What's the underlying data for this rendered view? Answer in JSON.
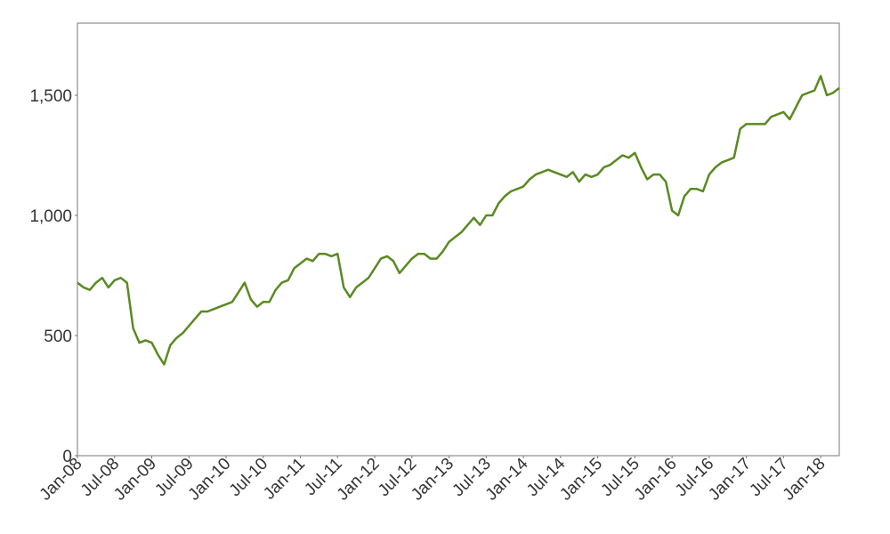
{
  "chart_data": {
    "type": "line",
    "x": [
      "Jan-08",
      "Feb-08",
      "Mar-08",
      "Apr-08",
      "May-08",
      "Jun-08",
      "Jul-08",
      "Aug-08",
      "Sep-08",
      "Oct-08",
      "Nov-08",
      "Dec-08",
      "Jan-09",
      "Feb-09",
      "Mar-09",
      "Apr-09",
      "May-09",
      "Jun-09",
      "Jul-09",
      "Aug-09",
      "Sep-09",
      "Oct-09",
      "Nov-09",
      "Dec-09",
      "Jan-10",
      "Feb-10",
      "Mar-10",
      "Apr-10",
      "May-10",
      "Jun-10",
      "Jul-10",
      "Aug-10",
      "Sep-10",
      "Oct-10",
      "Nov-10",
      "Dec-10",
      "Jan-11",
      "Feb-11",
      "Mar-11",
      "Apr-11",
      "May-11",
      "Jun-11",
      "Jul-11",
      "Aug-11",
      "Sep-11",
      "Oct-11",
      "Nov-11",
      "Dec-11",
      "Jan-12",
      "Feb-12",
      "Mar-12",
      "Apr-12",
      "May-12",
      "Jun-12",
      "Jul-12",
      "Aug-12",
      "Sep-12",
      "Oct-12",
      "Nov-12",
      "Dec-12",
      "Jan-13",
      "Feb-13",
      "Mar-13",
      "Apr-13",
      "May-13",
      "Jun-13",
      "Jul-13",
      "Aug-13",
      "Sep-13",
      "Oct-13",
      "Nov-13",
      "Dec-13",
      "Jan-14",
      "Feb-14",
      "Mar-14",
      "Apr-14",
      "May-14",
      "Jun-14",
      "Jul-14",
      "Aug-14",
      "Sep-14",
      "Oct-14",
      "Nov-14",
      "Dec-14",
      "Jan-15",
      "Feb-15",
      "Mar-15",
      "Apr-15",
      "May-15",
      "Jun-15",
      "Jul-15",
      "Aug-15",
      "Sep-15",
      "Oct-15",
      "Nov-15",
      "Dec-15",
      "Jan-16",
      "Feb-16",
      "Mar-16",
      "Apr-16",
      "May-16",
      "Jun-16",
      "Jul-16",
      "Aug-16",
      "Sep-16",
      "Oct-16",
      "Nov-16",
      "Dec-16",
      "Jan-17",
      "Feb-17",
      "Mar-17",
      "Apr-17",
      "May-17",
      "Jun-17",
      "Jul-17",
      "Aug-17",
      "Sep-17",
      "Oct-17",
      "Nov-17",
      "Dec-17",
      "Jan-18",
      "Feb-18",
      "Mar-18",
      "Apr-18"
    ],
    "series": [
      {
        "color": "#5a8a22",
        "values": [
          720,
          700,
          690,
          720,
          740,
          700,
          730,
          740,
          720,
          530,
          470,
          480,
          470,
          420,
          380,
          460,
          490,
          510,
          540,
          570,
          600,
          600,
          610,
          620,
          630,
          640,
          680,
          720,
          650,
          620,
          640,
          640,
          690,
          720,
          730,
          780,
          800,
          820,
          810,
          840,
          840,
          830,
          840,
          700,
          660,
          700,
          720,
          740,
          780,
          820,
          830,
          810,
          760,
          790,
          820,
          840,
          840,
          820,
          820,
          850,
          890,
          910,
          930,
          960,
          990,
          960,
          1000,
          1000,
          1050,
          1080,
          1100,
          1110,
          1120,
          1150,
          1170,
          1180,
          1190,
          1180,
          1170,
          1160,
          1180,
          1140,
          1170,
          1160,
          1170,
          1200,
          1210,
          1230,
          1250,
          1240,
          1260,
          1200,
          1150,
          1170,
          1170,
          1140,
          1020,
          1000,
          1080,
          1110,
          1110,
          1100,
          1170,
          1200,
          1220,
          1230,
          1240,
          1360,
          1380,
          1380,
          1380,
          1380,
          1410,
          1420,
          1430,
          1400,
          1450,
          1500,
          1510,
          1520,
          1580,
          1500,
          1510,
          1530
        ]
      }
    ],
    "xticks": [
      "Jan-08",
      "Jul-08",
      "Jan-09",
      "Jul-09",
      "Jan-10",
      "Jul-10",
      "Jan-11",
      "Jul-11",
      "Jan-12",
      "Jul-12",
      "Jan-13",
      "Jul-13",
      "Jan-14",
      "Jul-14",
      "Jan-15",
      "Jul-15",
      "Jan-16",
      "Jul-16",
      "Jan-17",
      "Jul-17",
      "Jan-18"
    ],
    "ylim": [
      0,
      1800
    ],
    "yticks": [
      0,
      500,
      {
        "value": 1000,
        "label": "1,000"
      },
      {
        "value": 1500,
        "label": "1,500"
      }
    ]
  }
}
